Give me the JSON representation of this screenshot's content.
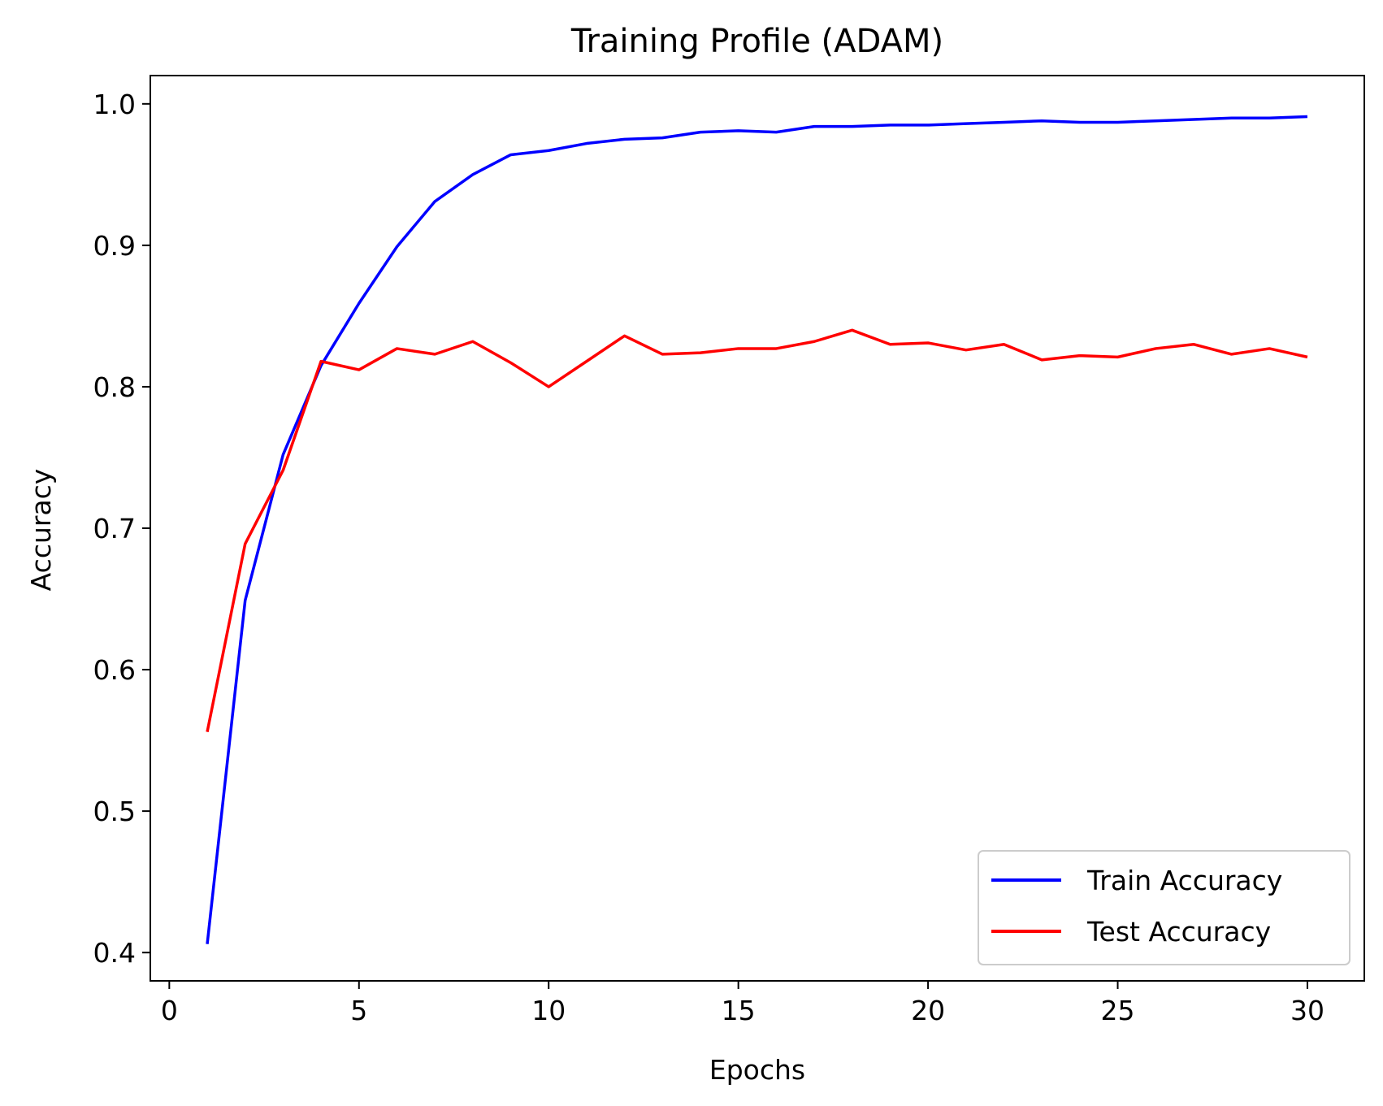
{
  "chart_data": {
    "type": "line",
    "title": "Training Profile (ADAM)",
    "xlabel": "Epochs",
    "ylabel": "Accuracy",
    "xlim": [
      -0.5,
      31.5
    ],
    "ylim": [
      0.38,
      1.02
    ],
    "xticks": [
      0,
      5,
      10,
      15,
      20,
      25,
      30
    ],
    "xtick_labels": [
      "0",
      "5",
      "10",
      "15",
      "20",
      "25",
      "30"
    ],
    "yticks": [
      0.4,
      0.5,
      0.6,
      0.7,
      0.8,
      0.9,
      1.0
    ],
    "ytick_labels": [
      "0.4",
      "0.5",
      "0.6",
      "0.7",
      "0.8",
      "0.9",
      "1.0"
    ],
    "grid": false,
    "legend_position": "lower-right",
    "x": [
      1,
      2,
      3,
      4,
      5,
      6,
      7,
      8,
      9,
      10,
      11,
      12,
      13,
      14,
      15,
      16,
      17,
      18,
      19,
      20,
      21,
      22,
      23,
      24,
      25,
      26,
      27,
      28,
      29,
      30
    ],
    "series": [
      {
        "name": "Train Accuracy",
        "color": "#0000ff",
        "values": [
          0.406,
          0.649,
          0.752,
          0.815,
          0.859,
          0.899,
          0.931,
          0.95,
          0.964,
          0.967,
          0.972,
          0.975,
          0.976,
          0.98,
          0.981,
          0.98,
          0.984,
          0.984,
          0.985,
          0.985,
          0.986,
          0.987,
          0.988,
          0.987,
          0.987,
          0.988,
          0.989,
          0.99,
          0.99,
          0.991
        ]
      },
      {
        "name": "Test Accuracy",
        "color": "#ff0000",
        "values": [
          0.556,
          0.689,
          0.741,
          0.818,
          0.812,
          0.827,
          0.823,
          0.832,
          0.817,
          0.8,
          0.818,
          0.836,
          0.823,
          0.824,
          0.827,
          0.827,
          0.832,
          0.84,
          0.83,
          0.831,
          0.826,
          0.83,
          0.819,
          0.822,
          0.821,
          0.827,
          0.83,
          0.823,
          0.827,
          0.821
        ]
      }
    ]
  }
}
